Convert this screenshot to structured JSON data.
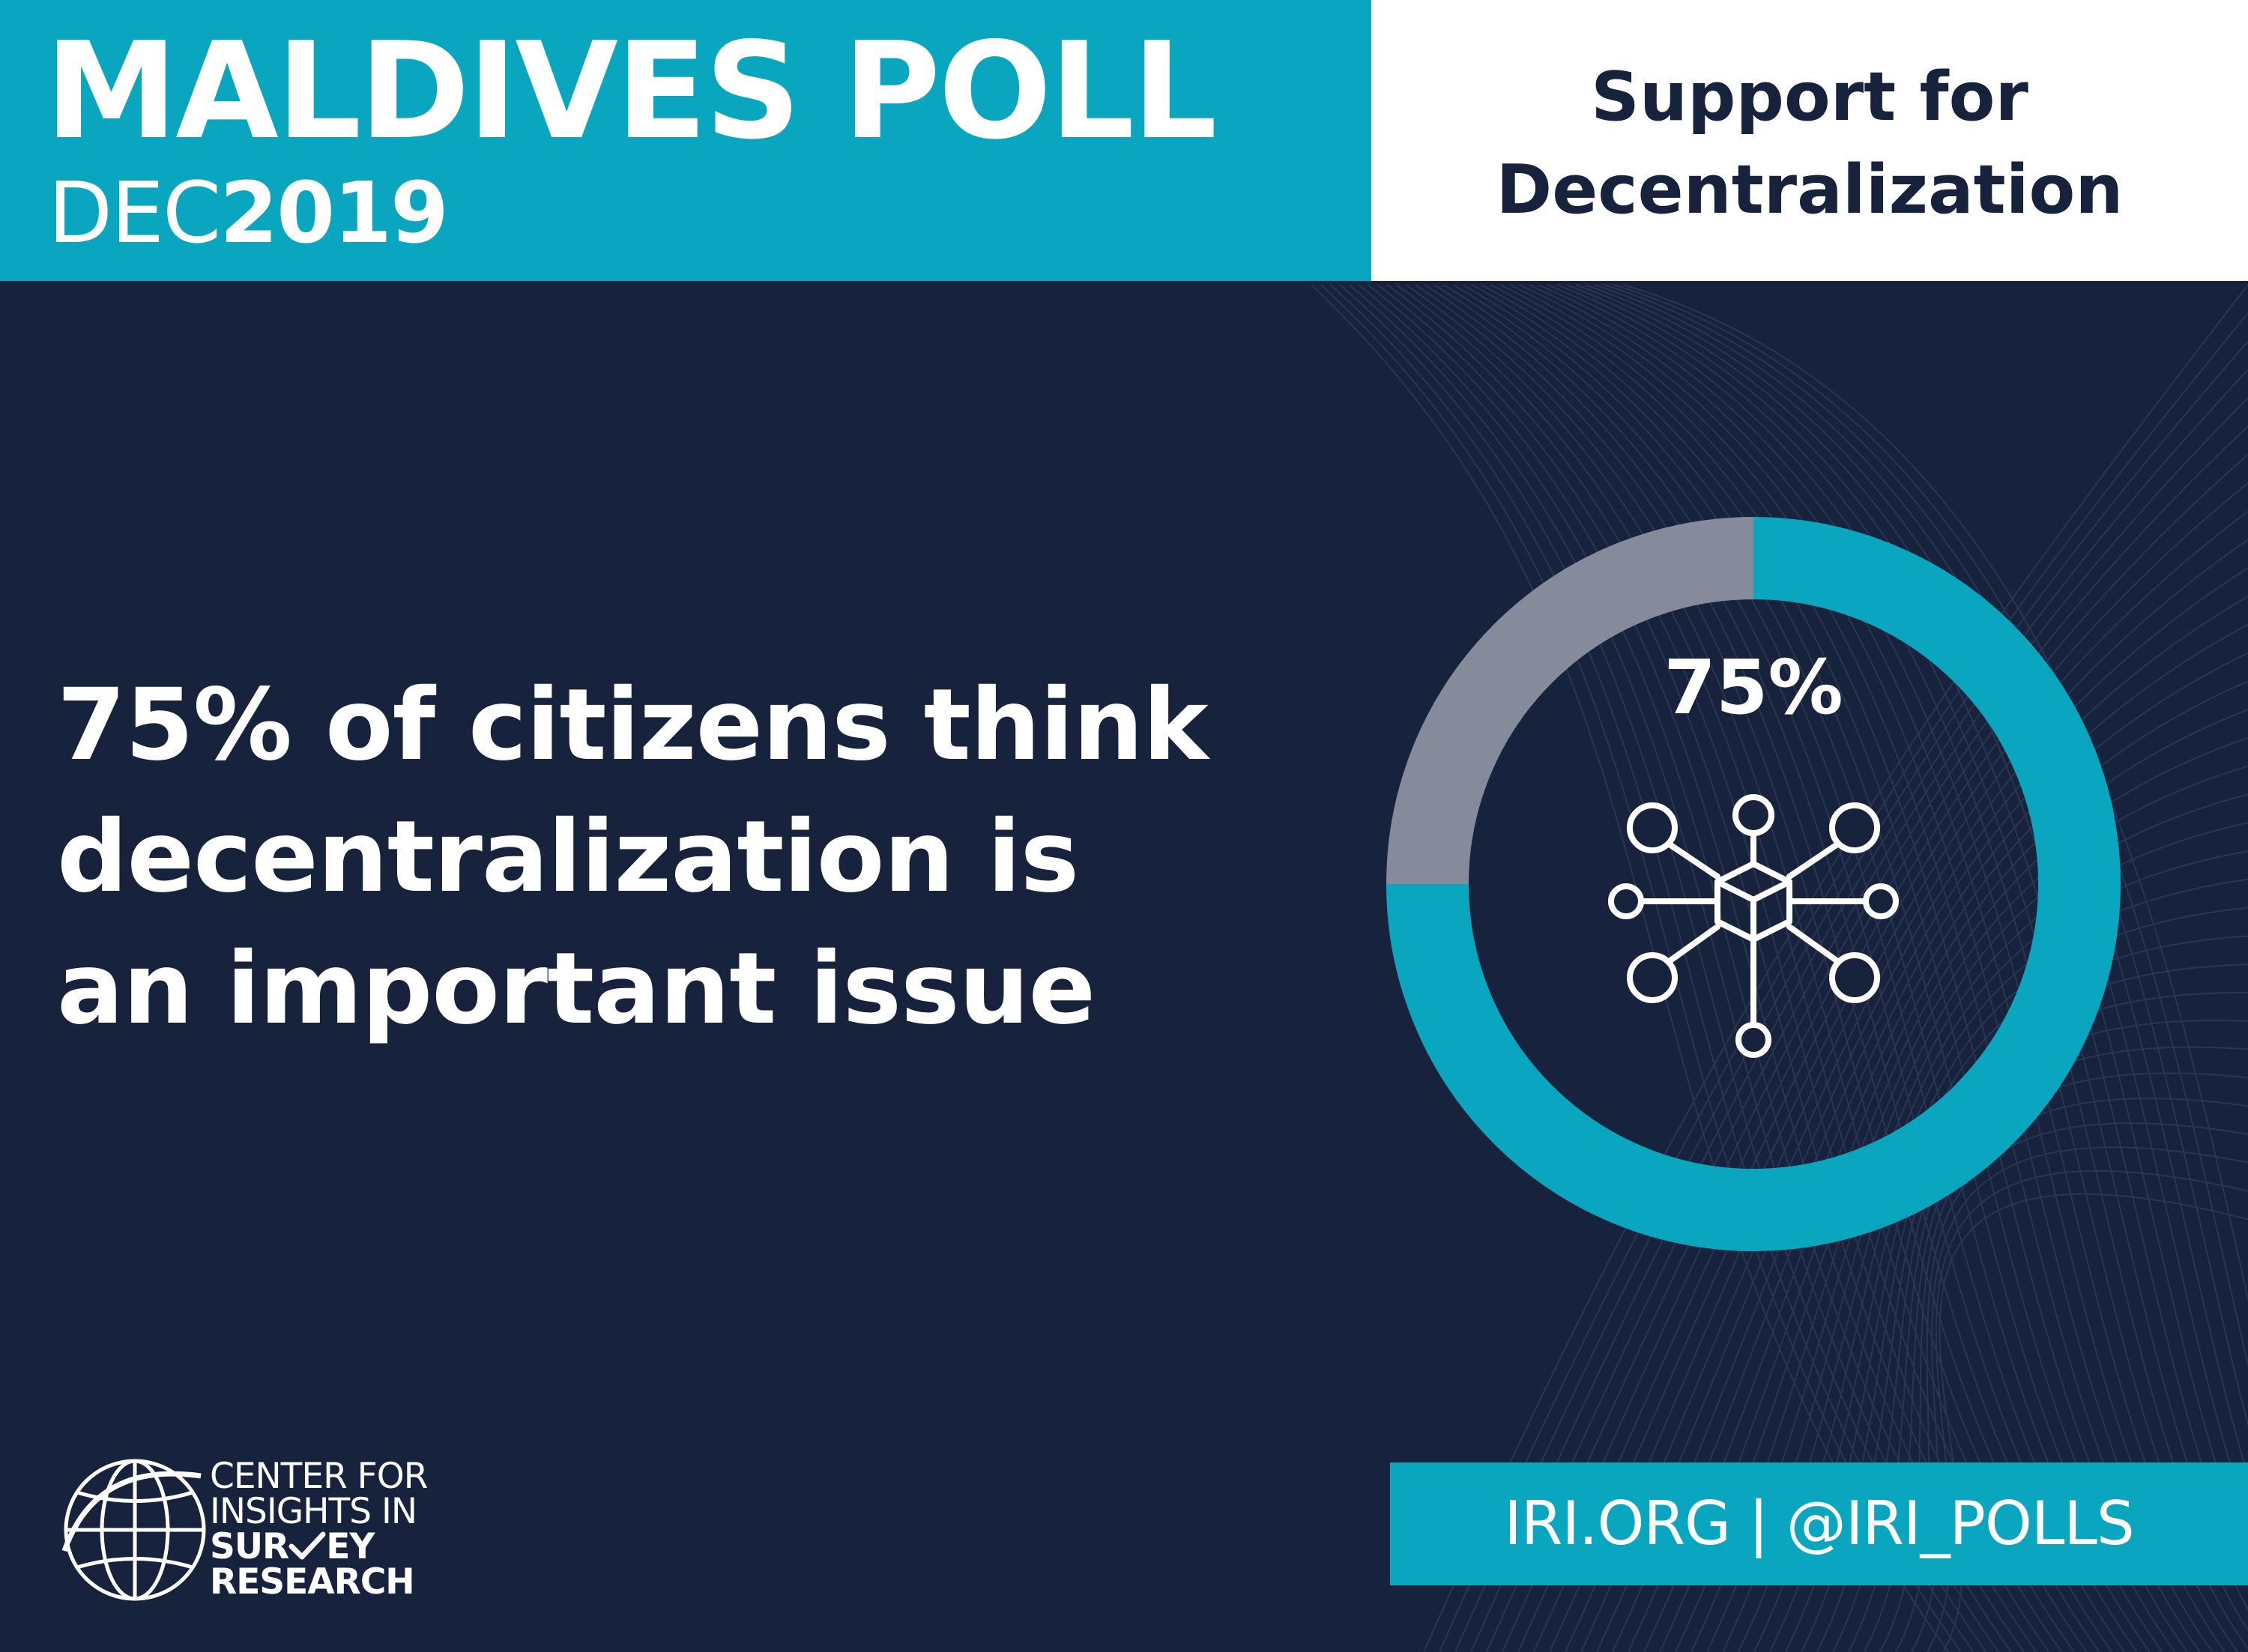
{
  "header": {
    "title": "MALDIVES POLL",
    "date_prefix": "DEC",
    "date_year": "2019",
    "topic_line1": "Support for",
    "topic_line2": "Decentralization"
  },
  "headline": {
    "line1": "75% of citizens think",
    "line2": "decentralization is",
    "line3": "an important issue"
  },
  "chart_data": {
    "type": "pie",
    "style": "donut",
    "center_label": "75%",
    "center_icon": "network-cube-icon",
    "values": [
      75,
      25
    ],
    "colors": [
      "#0aa6bf",
      "#858b9b"
    ]
  },
  "logo": {
    "line1": "CENTER FOR",
    "line2": "INSIGHTS IN",
    "line3_start": "SUR",
    "line3_end": "EY",
    "line4": "RESEARCH"
  },
  "footer": {
    "link": "IRI.ORG | @IRI_POLLS"
  },
  "colors": {
    "accent": "#0aa6bf",
    "background": "#17223d",
    "remainder": "#858b9b",
    "white": "#ffffff"
  }
}
